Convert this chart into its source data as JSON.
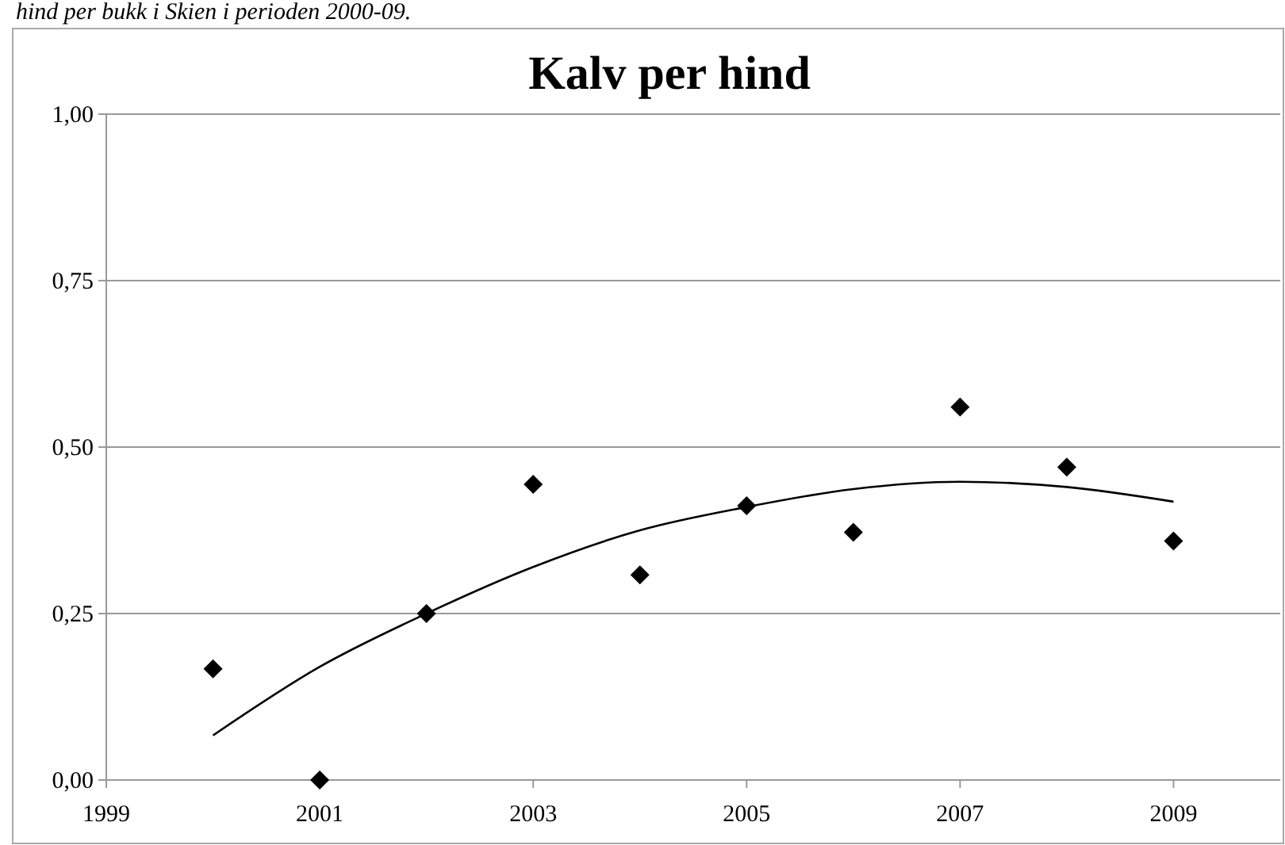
{
  "chart_data": {
    "type": "scatter",
    "title": "Kalv per hind",
    "annotations": [
      "hind per bukk i Skien i perioden 2000-09."
    ],
    "x": [
      2000,
      2001,
      2002,
      2003,
      2004,
      2005,
      2006,
      2007,
      2008,
      2009
    ],
    "series": [
      {
        "color": "#000000",
        "marker": "diamond",
        "values": [
          0.167,
          0,
          0.25,
          0.444,
          0.308,
          0.412,
          0.372,
          0.56,
          0.47,
          0.359
        ]
      },
      {
        "type": "line",
        "color": "#000000",
        "marker": "none",
        "x": [
          2000,
          2001,
          2002,
          2003,
          2004,
          2005,
          2006,
          2007,
          2008,
          2009
        ],
        "values": [
          0.067,
          0.17,
          0.25,
          0.32,
          0.375,
          0.41,
          0.437,
          0.448,
          0.44,
          0.418
        ]
      }
    ],
    "xlim": [
      1999,
      2010
    ],
    "xticks": [
      1999,
      2001,
      2003,
      2005,
      2007,
      2009
    ],
    "ylim": [
      0,
      1
    ],
    "yticks": [
      {
        "value": 0,
        "label": "0,00"
      },
      {
        "value": 0.25,
        "label": "0,25"
      },
      {
        "value": 0.5,
        "label": "0,50"
      },
      {
        "value": 0.75,
        "label": "0,75"
      },
      {
        "value": 1,
        "label": "1,00"
      }
    ],
    "grid": "y"
  }
}
